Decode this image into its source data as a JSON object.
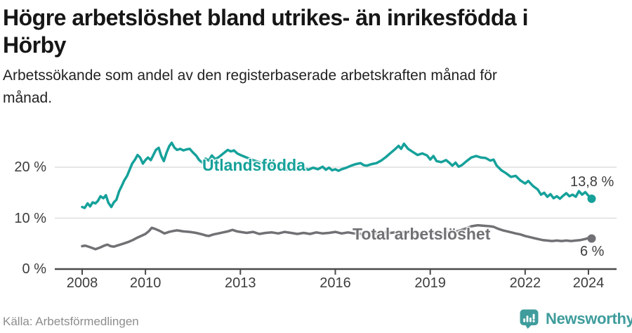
{
  "title_lines": [
    "Högre arbetslöshet bland utrikes- än inrikesfödda i",
    "Hörby"
  ],
  "subtitle_lines": [
    "Arbetssökande som andel av den registerbaserade arbetskraften månad för",
    "månad."
  ],
  "source": "Källa: Arbetsförmedlingen",
  "branding": {
    "name": "Newsworthy",
    "icon": "newsworthy-speech-bubble-bar-chart-icon",
    "color": "#3f9c9c"
  },
  "colors": {
    "accent_teal": "#15a19a",
    "series_gray": "#717175",
    "grid": "#dedede",
    "axis": "#4a4a4a",
    "tick_text": "#3d3d3d",
    "title_text": "#161616",
    "source_text": "#8d8d8d"
  },
  "chart_data": {
    "type": "line",
    "title": "Högre arbetslöshet bland utrikes- än inrikesfödda i Hörby",
    "subtitle": "Arbetssökande som andel av den registerbaserade arbetskraften månad för månad.",
    "unit": "%",
    "grid": true,
    "x_axis": {
      "ticks": [
        2008,
        2010,
        2013,
        2016,
        2019,
        2022,
        2024
      ],
      "range": [
        2007.9,
        2024.9
      ]
    },
    "y_axis": {
      "ticks": [
        "0 %",
        "10 %",
        "20 %"
      ],
      "tick_values": [
        0,
        10,
        20
      ],
      "range": [
        0,
        26.6
      ]
    },
    "series": [
      {
        "name": "Utlandsfödda",
        "color": "#15a19a",
        "end_label": "13,8 %",
        "end_value": 13.8,
        "points": [
          [
            2008.0,
            12.2
          ],
          [
            2008.08,
            12.0
          ],
          [
            2008.17,
            12.9
          ],
          [
            2008.25,
            12.3
          ],
          [
            2008.33,
            13.1
          ],
          [
            2008.42,
            12.9
          ],
          [
            2008.5,
            13.4
          ],
          [
            2008.58,
            14.3
          ],
          [
            2008.67,
            13.9
          ],
          [
            2008.75,
            14.5
          ],
          [
            2008.83,
            13.0
          ],
          [
            2008.92,
            12.2
          ],
          [
            2009.0,
            13.1
          ],
          [
            2009.08,
            13.6
          ],
          [
            2009.17,
            15.3
          ],
          [
            2009.25,
            16.3
          ],
          [
            2009.33,
            17.4
          ],
          [
            2009.42,
            18.3
          ],
          [
            2009.5,
            19.5
          ],
          [
            2009.58,
            20.7
          ],
          [
            2009.67,
            21.5
          ],
          [
            2009.75,
            22.4
          ],
          [
            2009.83,
            21.9
          ],
          [
            2009.92,
            20.7
          ],
          [
            2010.0,
            21.4
          ],
          [
            2010.08,
            21.9
          ],
          [
            2010.17,
            21.4
          ],
          [
            2010.25,
            22.4
          ],
          [
            2010.33,
            23.4
          ],
          [
            2010.42,
            23.8
          ],
          [
            2010.5,
            22.2
          ],
          [
            2010.58,
            21.2
          ],
          [
            2010.67,
            22.9
          ],
          [
            2010.75,
            24.1
          ],
          [
            2010.83,
            24.8
          ],
          [
            2010.92,
            23.8
          ],
          [
            2011.0,
            23.4
          ],
          [
            2011.1,
            23.6
          ],
          [
            2011.2,
            23.3
          ],
          [
            2011.3,
            23.5
          ],
          [
            2011.4,
            23.6
          ],
          [
            2011.5,
            22.9
          ],
          [
            2011.6,
            22.3
          ],
          [
            2011.7,
            21.4
          ],
          [
            2011.8,
            20.9
          ],
          [
            2011.9,
            21.7
          ],
          [
            2012.0,
            21.3
          ],
          [
            2012.1,
            22.3
          ],
          [
            2012.2,
            21.6
          ],
          [
            2012.3,
            21.9
          ],
          [
            2012.4,
            22.4
          ],
          [
            2012.5,
            22.9
          ],
          [
            2012.6,
            23.4
          ],
          [
            2012.7,
            23.1
          ],
          [
            2012.8,
            23.3
          ],
          [
            2012.9,
            22.7
          ],
          [
            2013.0,
            22.4
          ],
          [
            2013.2,
            21.9
          ],
          [
            2013.4,
            21.4
          ],
          [
            2013.6,
            21.0
          ],
          [
            2013.8,
            20.5
          ],
          [
            2014.0,
            20.2
          ],
          [
            2014.2,
            19.9
          ],
          [
            2014.4,
            19.6
          ],
          [
            2014.6,
            19.4
          ],
          [
            2014.8,
            19.6
          ],
          [
            2015.0,
            19.8
          ],
          [
            2015.15,
            19.5
          ],
          [
            2015.3,
            19.9
          ],
          [
            2015.45,
            19.6
          ],
          [
            2015.6,
            20.1
          ],
          [
            2015.7,
            19.5
          ],
          [
            2015.8,
            19.9
          ],
          [
            2015.9,
            19.4
          ],
          [
            2016.0,
            19.6
          ],
          [
            2016.1,
            19.3
          ],
          [
            2016.2,
            19.6
          ],
          [
            2016.35,
            19.9
          ],
          [
            2016.5,
            20.3
          ],
          [
            2016.65,
            20.6
          ],
          [
            2016.8,
            20.8
          ],
          [
            2016.9,
            20.4
          ],
          [
            2017.0,
            20.3
          ],
          [
            2017.15,
            20.6
          ],
          [
            2017.3,
            20.8
          ],
          [
            2017.45,
            21.3
          ],
          [
            2017.6,
            22.0
          ],
          [
            2017.75,
            22.8
          ],
          [
            2017.9,
            23.6
          ],
          [
            2018.0,
            24.2
          ],
          [
            2018.08,
            23.6
          ],
          [
            2018.17,
            24.6
          ],
          [
            2018.3,
            23.6
          ],
          [
            2018.45,
            23.0
          ],
          [
            2018.6,
            22.4
          ],
          [
            2018.75,
            22.7
          ],
          [
            2018.9,
            22.3
          ],
          [
            2019.0,
            21.5
          ],
          [
            2019.1,
            22.2
          ],
          [
            2019.2,
            21.2
          ],
          [
            2019.35,
            21.0
          ],
          [
            2019.5,
            21.4
          ],
          [
            2019.6,
            20.9
          ],
          [
            2019.7,
            20.3
          ],
          [
            2019.8,
            20.9
          ],
          [
            2019.9,
            20.1
          ],
          [
            2020.0,
            20.4
          ],
          [
            2020.15,
            21.2
          ],
          [
            2020.3,
            21.9
          ],
          [
            2020.45,
            22.2
          ],
          [
            2020.6,
            21.9
          ],
          [
            2020.75,
            21.8
          ],
          [
            2020.9,
            21.3
          ],
          [
            2021.0,
            21.5
          ],
          [
            2021.1,
            20.3
          ],
          [
            2021.25,
            19.4
          ],
          [
            2021.4,
            18.8
          ],
          [
            2021.55,
            18.1
          ],
          [
            2021.7,
            18.3
          ],
          [
            2021.85,
            17.4
          ],
          [
            2022.0,
            16.8
          ],
          [
            2022.1,
            17.3
          ],
          [
            2022.25,
            16.3
          ],
          [
            2022.4,
            15.6
          ],
          [
            2022.5,
            14.6
          ],
          [
            2022.6,
            15.0
          ],
          [
            2022.7,
            14.2
          ],
          [
            2022.8,
            14.7
          ],
          [
            2022.9,
            13.9
          ],
          [
            2023.0,
            14.3
          ],
          [
            2023.1,
            13.8
          ],
          [
            2023.2,
            14.4
          ],
          [
            2023.3,
            14.9
          ],
          [
            2023.4,
            14.3
          ],
          [
            2023.5,
            14.6
          ],
          [
            2023.6,
            14.2
          ],
          [
            2023.7,
            15.3
          ],
          [
            2023.8,
            14.6
          ],
          [
            2023.9,
            15.1
          ],
          [
            2024.0,
            14.4
          ],
          [
            2024.1,
            13.8
          ]
        ]
      },
      {
        "name": "Total arbetslöshet",
        "color": "#717175",
        "end_label": "6 %",
        "end_value": 6,
        "points": [
          [
            2008.0,
            4.5
          ],
          [
            2008.1,
            4.6
          ],
          [
            2008.2,
            4.4
          ],
          [
            2008.3,
            4.2
          ],
          [
            2008.42,
            3.9
          ],
          [
            2008.55,
            4.2
          ],
          [
            2008.7,
            4.6
          ],
          [
            2008.8,
            4.8
          ],
          [
            2008.9,
            4.5
          ],
          [
            2009.0,
            4.4
          ],
          [
            2009.15,
            4.7
          ],
          [
            2009.3,
            5.0
          ],
          [
            2009.45,
            5.3
          ],
          [
            2009.6,
            5.7
          ],
          [
            2009.75,
            6.2
          ],
          [
            2009.9,
            6.6
          ],
          [
            2010.0,
            6.9
          ],
          [
            2010.1,
            7.4
          ],
          [
            2010.2,
            8.1
          ],
          [
            2010.3,
            7.9
          ],
          [
            2010.45,
            7.5
          ],
          [
            2010.6,
            7.0
          ],
          [
            2010.75,
            7.3
          ],
          [
            2010.9,
            7.5
          ],
          [
            2011.0,
            7.6
          ],
          [
            2011.2,
            7.4
          ],
          [
            2011.4,
            7.3
          ],
          [
            2011.6,
            7.1
          ],
          [
            2011.8,
            6.8
          ],
          [
            2011.9,
            6.6
          ],
          [
            2012.0,
            6.5
          ],
          [
            2012.15,
            6.8
          ],
          [
            2012.3,
            7.0
          ],
          [
            2012.45,
            7.2
          ],
          [
            2012.6,
            7.4
          ],
          [
            2012.75,
            7.7
          ],
          [
            2012.9,
            7.4
          ],
          [
            2013.0,
            7.3
          ],
          [
            2013.2,
            7.1
          ],
          [
            2013.4,
            7.3
          ],
          [
            2013.6,
            6.9
          ],
          [
            2013.8,
            7.1
          ],
          [
            2014.0,
            7.2
          ],
          [
            2014.2,
            7.0
          ],
          [
            2014.4,
            7.3
          ],
          [
            2014.6,
            7.1
          ],
          [
            2014.8,
            6.9
          ],
          [
            2015.0,
            7.1
          ],
          [
            2015.2,
            6.9
          ],
          [
            2015.4,
            7.2
          ],
          [
            2015.6,
            7.0
          ],
          [
            2015.8,
            7.1
          ],
          [
            2016.0,
            7.3
          ],
          [
            2016.2,
            7.0
          ],
          [
            2016.4,
            7.2
          ],
          [
            2016.6,
            7.0
          ],
          [
            2016.8,
            6.9
          ],
          [
            2017.0,
            7.1
          ],
          [
            2017.25,
            7.0
          ],
          [
            2017.5,
            7.2
          ],
          [
            2017.75,
            7.1
          ],
          [
            2018.0,
            7.3
          ],
          [
            2018.25,
            7.2
          ],
          [
            2018.5,
            7.0
          ],
          [
            2018.75,
            7.1
          ],
          [
            2019.0,
            7.2
          ],
          [
            2019.25,
            7.0
          ],
          [
            2019.5,
            7.1
          ],
          [
            2019.75,
            7.3
          ],
          [
            2019.9,
            7.5
          ],
          [
            2020.1,
            7.9
          ],
          [
            2020.3,
            8.4
          ],
          [
            2020.5,
            8.6
          ],
          [
            2020.7,
            8.5
          ],
          [
            2020.9,
            8.4
          ],
          [
            2021.0,
            8.3
          ],
          [
            2021.15,
            7.9
          ],
          [
            2021.3,
            7.6
          ],
          [
            2021.5,
            7.3
          ],
          [
            2021.7,
            7.0
          ],
          [
            2021.85,
            6.8
          ],
          [
            2022.0,
            6.5
          ],
          [
            2022.2,
            6.2
          ],
          [
            2022.4,
            5.9
          ],
          [
            2022.55,
            5.7
          ],
          [
            2022.7,
            5.6
          ],
          [
            2022.85,
            5.5
          ],
          [
            2023.0,
            5.6
          ],
          [
            2023.15,
            5.5
          ],
          [
            2023.3,
            5.6
          ],
          [
            2023.45,
            5.5
          ],
          [
            2023.6,
            5.6
          ],
          [
            2023.75,
            5.7
          ],
          [
            2023.9,
            5.9
          ],
          [
            2024.0,
            6.1
          ],
          [
            2024.1,
            6.0
          ]
        ]
      }
    ]
  }
}
